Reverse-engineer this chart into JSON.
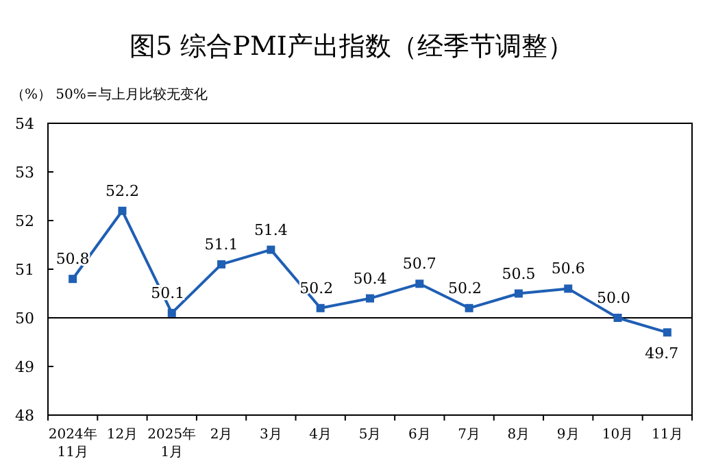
{
  "chart_data": {
    "type": "line",
    "title": "图5  综合PMI产出指数（经季节调整）",
    "subtitle": "（%）    50%=与上月比较无变化",
    "categories": [
      "2024年\n11月",
      "12月",
      "2025年\n1月",
      "2月",
      "3月",
      "4月",
      "5月",
      "6月",
      "7月",
      "8月",
      "9月",
      "10月",
      "11月"
    ],
    "values": [
      50.8,
      52.2,
      50.1,
      51.1,
      51.4,
      50.2,
      50.4,
      50.7,
      50.2,
      50.5,
      50.6,
      50.0,
      49.7
    ],
    "value_labels": [
      "50.8",
      "52.2",
      "50.1",
      "51.1",
      "51.4",
      "50.2",
      "50.4",
      "50.7",
      "50.2",
      "50.5",
      "50.6",
      "50.0",
      "49.7"
    ],
    "color": "#1f5fb4",
    "marker": "square",
    "ylim": [
      48,
      54
    ],
    "yticks": [
      48,
      49,
      50,
      51,
      52,
      53,
      54
    ],
    "ref_lines": [
      {
        "axis": "y",
        "value": 50,
        "color": "#000000"
      }
    ],
    "grid": false
  }
}
